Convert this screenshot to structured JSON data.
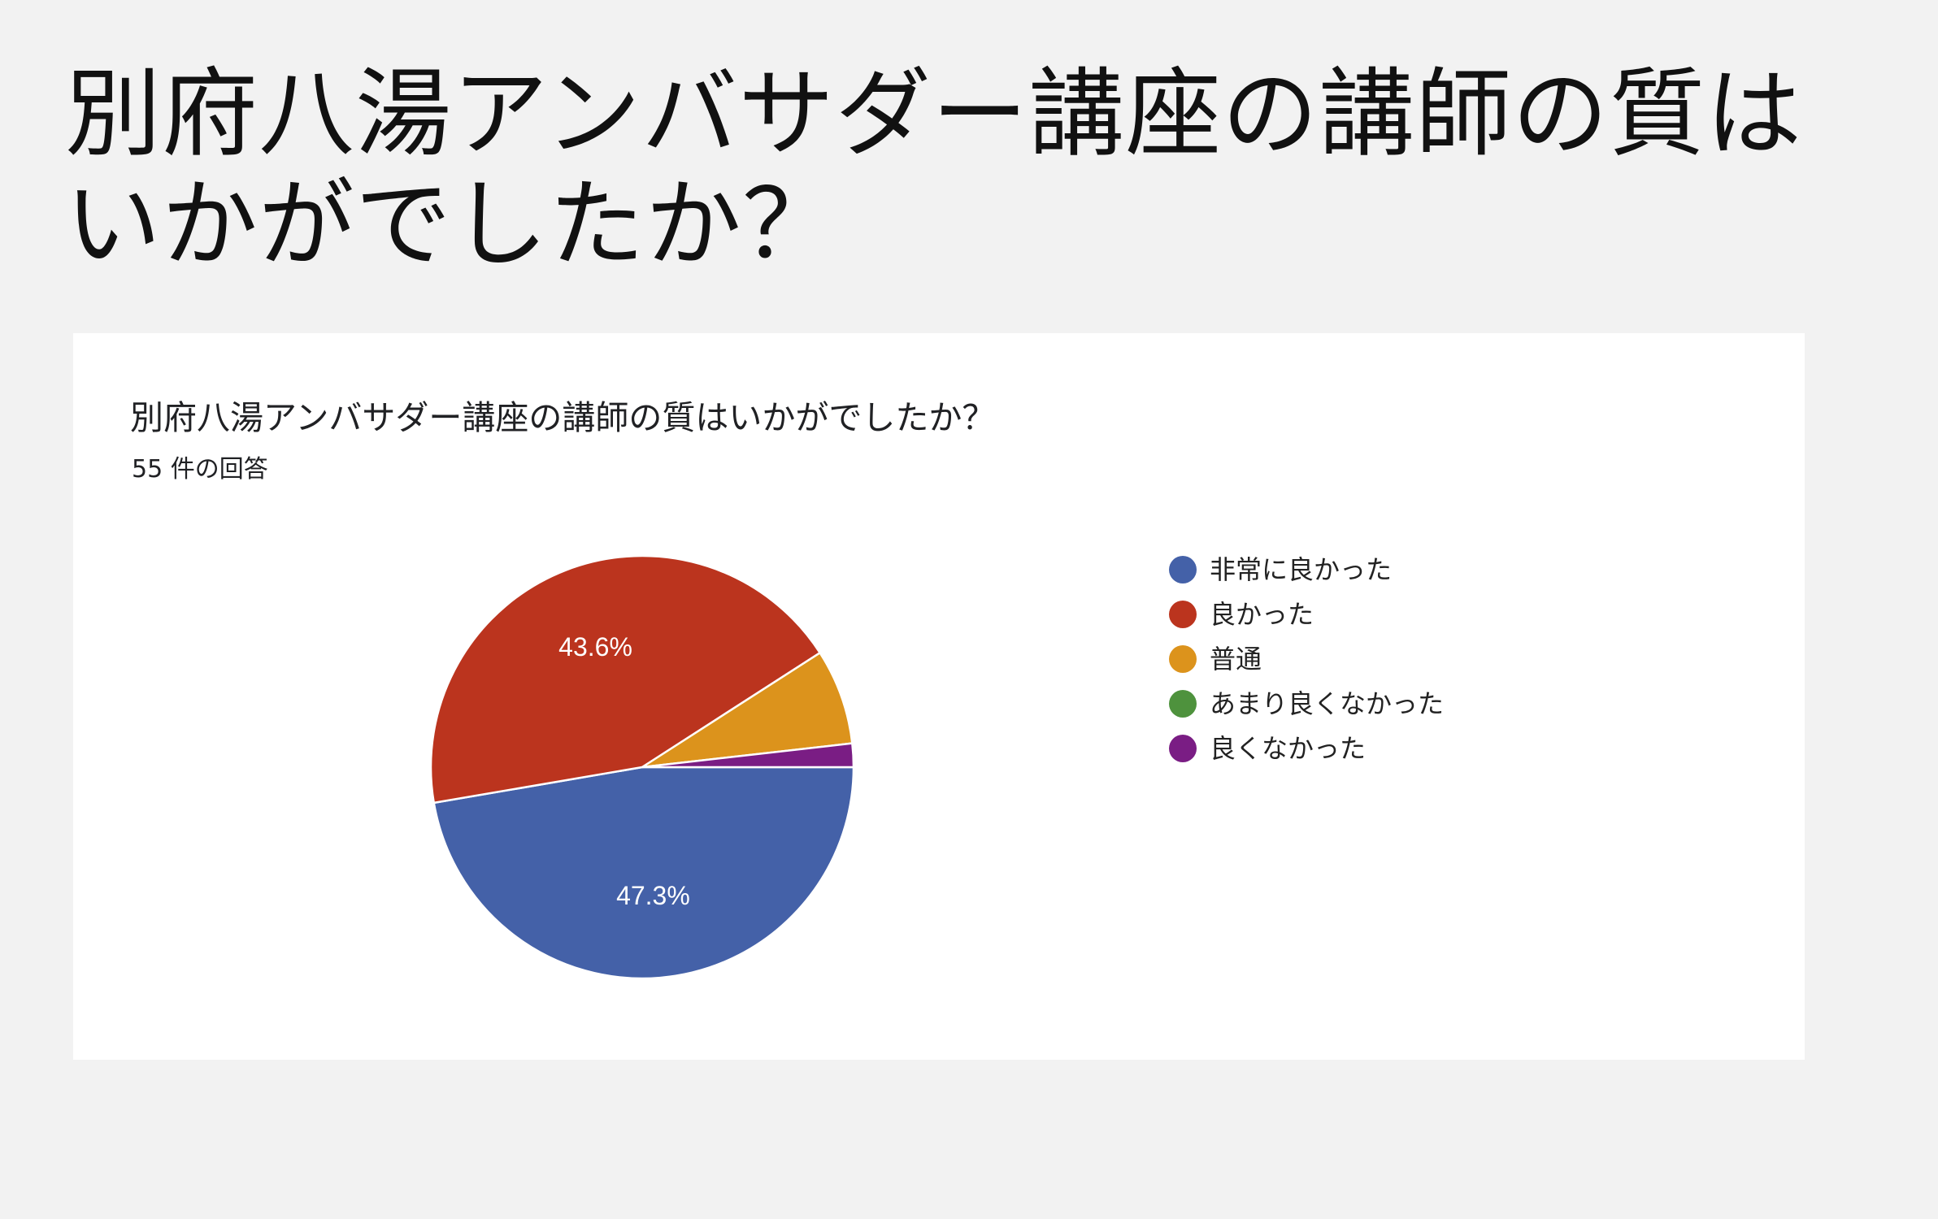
{
  "slide": {
    "title": "別府八湯アンバサダー講座の講師の質はいかがでしたか？"
  },
  "card": {
    "question": "別府八湯アンバサダー講座の講師の質はいかがでしたか？",
    "response_count": "55 件の回答"
  },
  "chart_data": {
    "type": "pie",
    "title": "別府八湯アンバサダー講座の講師の質はいかがでしたか？",
    "subtitle": "55 件の回答",
    "legend_position": "right",
    "slices": [
      {
        "label": "非常に良かった",
        "value": 47.3,
        "display": "47.3%",
        "color": "#4461a8"
      },
      {
        "label": "良かった",
        "value": 43.6,
        "display": "43.6%",
        "color": "#bb341e"
      },
      {
        "label": "普通",
        "value": 7.3,
        "display": "",
        "color": "#dc931c"
      },
      {
        "label": "あまり良くなかった",
        "value": 0,
        "display": "",
        "color": "#4e923d"
      },
      {
        "label": "良くなかった",
        "value": 1.8,
        "display": "",
        "color": "#7a1d84"
      }
    ]
  }
}
